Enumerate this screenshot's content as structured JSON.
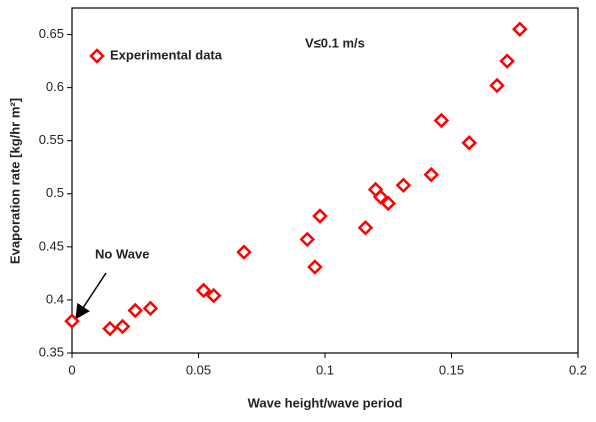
{
  "chart_data": {
    "type": "scatter",
    "xlabel": "Wave height/wave period",
    "ylabel": "Evaporation rate [kg/hr m²]",
    "annotations": [
      "V≤0.1 m/s",
      "No Wave"
    ],
    "series": [
      {
        "name": "Experimental data",
        "color": "#ff0000",
        "marker": "diamond",
        "x": [
          0,
          0.015,
          0.02,
          0.025,
          0.031,
          0.052,
          0.056,
          0.068,
          0.096,
          0.093,
          0.098,
          0.116,
          0.12,
          0.122,
          0.125,
          0.131,
          0.142,
          0.146,
          0.157,
          0.168,
          0.172,
          0.177
        ],
        "values": [
          0.38,
          0.373,
          0.375,
          0.39,
          0.392,
          0.409,
          0.404,
          0.445,
          0.431,
          0.457,
          0.479,
          0.468,
          0.504,
          0.497,
          0.491,
          0.508,
          0.518,
          0.569,
          0.548,
          0.602,
          0.625,
          0.655
        ]
      }
    ],
    "xlim": [
      0,
      0.2
    ],
    "xticks": [
      0,
      0.05,
      0.1,
      0.15,
      0.2
    ],
    "ylim": [
      0.35,
      0.675
    ],
    "yticks": [
      0.35,
      0.4,
      0.45,
      0.5,
      0.55,
      0.6,
      0.65
    ],
    "grid": false,
    "legend": "upper left"
  }
}
